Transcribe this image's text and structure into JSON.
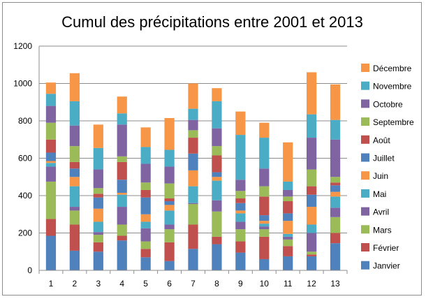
{
  "chart_data": {
    "type": "bar",
    "stacked": true,
    "title": "Cumul des précipitations entre 2001 et 2013",
    "xlabel": "",
    "ylabel": "",
    "ylim": [
      0,
      1200
    ],
    "yticks": [
      "0",
      "200",
      "400",
      "600",
      "800",
      "1000",
      "1200"
    ],
    "grid": true,
    "legend_position": "right",
    "categories": [
      "1",
      "2",
      "3",
      "4",
      "5",
      "6",
      "7",
      "8",
      "9",
      "10",
      "11",
      "12",
      "13"
    ],
    "series": [
      {
        "name": "Janvier",
        "color": "#4f81bd",
        "values": [
          185,
          105,
          100,
          160,
          70,
          50,
          115,
          140,
          95,
          60,
          75,
          75,
          145
        ]
      },
      {
        "name": "Février",
        "color": "#c0504d",
        "values": [
          90,
          140,
          50,
          25,
          45,
          100,
          130,
          40,
          60,
          120,
          55,
          10,
          55
        ]
      },
      {
        "name": "Mars",
        "color": "#9bbb59",
        "values": [
          200,
          75,
          40,
          60,
          40,
          70,
          110,
          135,
          65,
          40,
          35,
          15,
          85
        ]
      },
      {
        "name": "Avril",
        "color": "#8064a2",
        "values": [
          80,
          20,
          15,
          95,
          70,
          25,
          5,
          60,
          40,
          15,
          15,
          100,
          50
        ]
      },
      {
        "name": "Mai",
        "color": "#4bacc6",
        "values": [
          20,
          110,
          55,
          65,
          35,
          75,
          90,
          105,
          45,
          15,
          15,
          45,
          60
        ]
      },
      {
        "name": "Juin",
        "color": "#f79646",
        "values": [
          10,
          50,
          70,
          10,
          40,
          30,
          85,
          20,
          15,
          15,
          70,
          95,
          25
        ]
      },
      {
        "name": "Juillet",
        "color": "#4f81bd",
        "values": [
          45,
          45,
          60,
          70,
          90,
          20,
          90,
          25,
          40,
          30,
          40,
          65,
          35
        ]
      },
      {
        "name": "Août",
        "color": "#c0504d",
        "values": [
          70,
          35,
          20,
          95,
          40,
          15,
          85,
          90,
          25,
          100,
          65,
          45,
          15
        ]
      },
      {
        "name": "Septembre",
        "color": "#9bbb59",
        "values": [
          90,
          85,
          30,
          30,
          40,
          80,
          40,
          50,
          40,
          55,
          25,
          90,
          30
        ]
      },
      {
        "name": "Octobre",
        "color": "#8064a2",
        "values": [
          90,
          110,
          100,
          170,
          100,
          90,
          55,
          95,
          60,
          95,
          35,
          170,
          200
        ]
      },
      {
        "name": "Novembre",
        "color": "#4bacc6",
        "values": [
          65,
          130,
          115,
          60,
          90,
          90,
          60,
          145,
          240,
          165,
          45,
          125,
          105
        ]
      },
      {
        "name": "Décembre",
        "color": "#f79646",
        "values": [
          60,
          150,
          125,
          90,
          105,
          170,
          135,
          70,
          125,
          80,
          210,
          225,
          190
        ]
      }
    ]
  }
}
